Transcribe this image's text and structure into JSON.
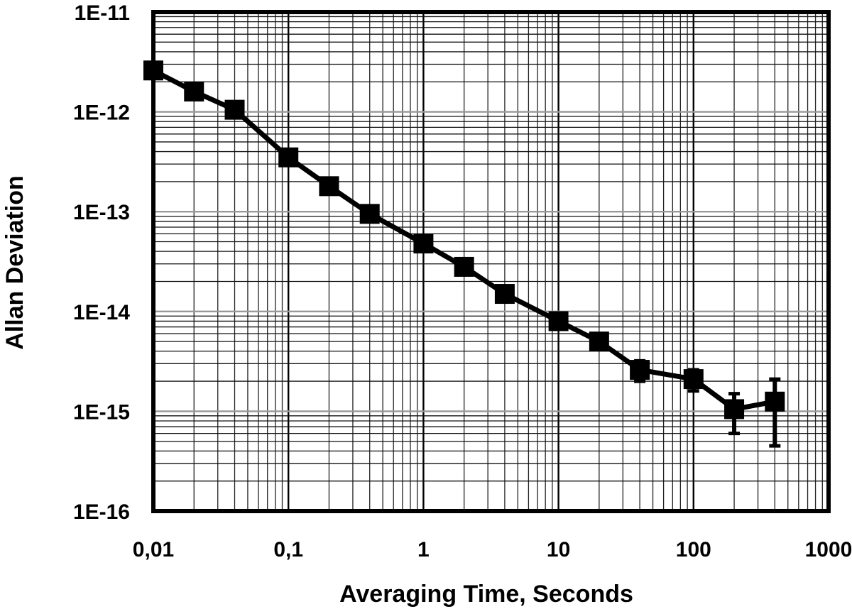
{
  "chart_data": {
    "type": "line",
    "title": "",
    "xlabel": "Averaging Time, Seconds",
    "ylabel": "Allan Deviation",
    "x_scale": "log",
    "y_scale": "log",
    "xlim": [
      0.01,
      1000
    ],
    "ylim": [
      1e-16,
      1e-11
    ],
    "grid": true,
    "x_ticks": [
      0.01,
      0.1,
      1,
      10,
      100,
      1000
    ],
    "x_tick_labels": [
      "0,01",
      "0,1",
      "1",
      "10",
      "100",
      "1000"
    ],
    "y_ticks": [
      1e-16,
      1e-15,
      1e-14,
      1e-13,
      1e-12,
      1e-11
    ],
    "y_tick_labels": [
      "1E-16",
      "1E-15",
      "1E-14",
      "1E-13",
      "1E-12",
      "1E-11"
    ],
    "series": [
      {
        "x": [
          0.01,
          0.02,
          0.04,
          0.1,
          0.2,
          0.4,
          1,
          2,
          4,
          10,
          20,
          40,
          100,
          200,
          400
        ],
        "y": [
          2.6e-12,
          1.6e-12,
          1.05e-12,
          3.5e-13,
          1.8e-13,
          9.5e-14,
          4.8e-14,
          2.8e-14,
          1.5e-14,
          8e-15,
          5e-15,
          2.6e-15,
          2.1e-15,
          1.05e-15,
          1.25e-15
        ],
        "y_err_low": [
          null,
          null,
          null,
          null,
          null,
          null,
          null,
          null,
          null,
          null,
          null,
          2e-15,
          1.6e-15,
          6e-16,
          4.5e-16
        ],
        "y_err_high": [
          null,
          null,
          null,
          null,
          null,
          null,
          null,
          null,
          null,
          null,
          null,
          3.2e-15,
          2.6e-15,
          1.5e-15,
          2.1e-15
        ],
        "marker": "square",
        "color": "#000000"
      }
    ]
  }
}
